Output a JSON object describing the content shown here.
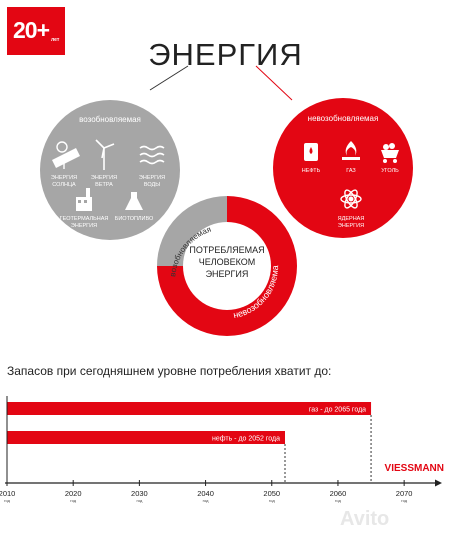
{
  "badge": {
    "number": "20+",
    "suffix": "лет"
  },
  "title": "ЭНЕРГИЯ",
  "renewable": {
    "label": "возобновляемая",
    "items": [
      {
        "label1": "ЭНЕРГИЯ",
        "label2": "СОЛНЦА",
        "icon": "solar-panel-icon"
      },
      {
        "label1": "ЭНЕРГИЯ",
        "label2": "ВЕТРА",
        "icon": "wind-turbine-icon"
      },
      {
        "label1": "ЭНЕРГИЯ",
        "label2": "ВОДЫ",
        "icon": "water-waves-icon"
      },
      {
        "label1": "ГЕОТЕРМАЛЬНАЯ",
        "label2": "ЭНЕРГИЯ",
        "icon": "factory-icon"
      },
      {
        "label1": "БИОТОПЛИВО",
        "label2": "",
        "icon": "flask-icon"
      }
    ]
  },
  "nonrenewable": {
    "label": "невозобновляемая",
    "items": [
      {
        "label1": "НЕФТЬ",
        "label2": "",
        "icon": "oil-barrel-icon"
      },
      {
        "label1": "ГАЗ",
        "label2": "",
        "icon": "gas-flame-icon"
      },
      {
        "label1": "УГОЛЬ",
        "label2": "",
        "icon": "coal-cart-icon"
      },
      {
        "label1": "ЯДЕРНАЯ",
        "label2": "ЭНЕРГИЯ",
        "icon": "atom-icon"
      }
    ]
  },
  "donut": {
    "center": [
      "ПОТРЕБЛЯЕМАЯ",
      "ЧЕЛОВЕКОМ",
      "ЭНЕРГИЯ"
    ],
    "renewable_label": "возобновляемая",
    "nonrenewable_label": "невозобновляемая",
    "renewable_share": 0.25
  },
  "question": "Запасов при сегодняшнем уровне потребления хватит до:",
  "chart_data": {
    "type": "bar",
    "orientation": "horizontal",
    "series": [
      {
        "name": "газ",
        "start": 2010,
        "end": 2065,
        "label": "газ - до 2065 года"
      },
      {
        "name": "нефть",
        "start": 2010,
        "end": 2052,
        "label": "нефть - до 2052 года"
      }
    ],
    "x_ticks": [
      2010,
      2020,
      2030,
      2040,
      2050,
      2060,
      2070
    ],
    "tick_unit": "год",
    "xlim": [
      2010,
      2073
    ]
  },
  "brand": "VIESSMANN",
  "watermark": "Avito",
  "colors": {
    "red": "#e30613",
    "gray": "#a6a6a6",
    "dark": "#222222"
  }
}
